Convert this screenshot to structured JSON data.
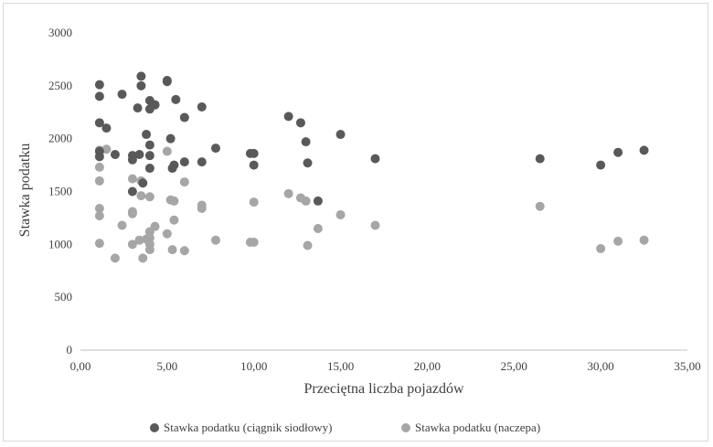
{
  "chart_data": {
    "type": "scatter",
    "title": "",
    "xlabel": "Przeciętna liczba pojazdów",
    "ylabel": "Stawka podatku",
    "xlim": [
      0,
      35
    ],
    "ylim": [
      0,
      3000
    ],
    "x_ticks": [
      "0,00",
      "5,00",
      "10,00",
      "15,00",
      "20,00",
      "25,00",
      "30,00",
      "35,00"
    ],
    "y_ticks": [
      "0",
      "500",
      "1000",
      "1500",
      "2000",
      "2500",
      "3000"
    ],
    "grid": false,
    "legend_position": "bottom",
    "series": [
      {
        "name": "Stawka podatku (ciągnik siodłowy)",
        "color": "#595959",
        "points": [
          [
            1.1,
            2510
          ],
          [
            1.1,
            2400
          ],
          [
            1.1,
            2150
          ],
          [
            1.1,
            1880
          ],
          [
            1.1,
            1830
          ],
          [
            1.5,
            2100
          ],
          [
            2.0,
            1850
          ],
          [
            2.4,
            2420
          ],
          [
            3.0,
            1840
          ],
          [
            3.0,
            1800
          ],
          [
            3.0,
            1500
          ],
          [
            3.3,
            2290
          ],
          [
            3.4,
            1850
          ],
          [
            3.5,
            2590
          ],
          [
            3.5,
            2500
          ],
          [
            3.6,
            1580
          ],
          [
            3.8,
            2040
          ],
          [
            4.0,
            2360
          ],
          [
            4.0,
            2280
          ],
          [
            4.0,
            1940
          ],
          [
            4.0,
            1840
          ],
          [
            4.0,
            1720
          ],
          [
            4.3,
            2320
          ],
          [
            5.0,
            2550
          ],
          [
            5.0,
            2540
          ],
          [
            5.2,
            2000
          ],
          [
            5.3,
            1720
          ],
          [
            5.4,
            1750
          ],
          [
            5.5,
            2370
          ],
          [
            6.0,
            2200
          ],
          [
            6.0,
            1780
          ],
          [
            7.0,
            2300
          ],
          [
            7.0,
            1780
          ],
          [
            7.8,
            1910
          ],
          [
            9.8,
            1860
          ],
          [
            10.0,
            1860
          ],
          [
            10.0,
            1750
          ],
          [
            12.0,
            2210
          ],
          [
            12.7,
            2150
          ],
          [
            13.0,
            1970
          ],
          [
            13.1,
            1770
          ],
          [
            13.7,
            1410
          ],
          [
            15.0,
            2040
          ],
          [
            17.0,
            1810
          ],
          [
            26.5,
            1810
          ],
          [
            30.0,
            1750
          ],
          [
            31.0,
            1870
          ],
          [
            32.5,
            1890
          ]
        ]
      },
      {
        "name": "Stawka podatku (naczepa)",
        "color": "#a6a6a6",
        "points": [
          [
            1.1,
            1890
          ],
          [
            1.5,
            1900
          ],
          [
            1.1,
            1730
          ],
          [
            1.1,
            1600
          ],
          [
            1.1,
            1340
          ],
          [
            1.1,
            1270
          ],
          [
            1.1,
            1010
          ],
          [
            2.0,
            870
          ],
          [
            2.4,
            1180
          ],
          [
            3.0,
            1620
          ],
          [
            3.0,
            1310
          ],
          [
            3.0,
            1290
          ],
          [
            3.0,
            1000
          ],
          [
            3.4,
            1040
          ],
          [
            3.5,
            1600
          ],
          [
            3.5,
            1460
          ],
          [
            3.6,
            870
          ],
          [
            3.8,
            1050
          ],
          [
            4.0,
            1450
          ],
          [
            4.0,
            1120
          ],
          [
            4.0,
            1060
          ],
          [
            4.0,
            1000
          ],
          [
            4.0,
            950
          ],
          [
            4.3,
            1170
          ],
          [
            5.0,
            1880
          ],
          [
            5.0,
            1100
          ],
          [
            5.2,
            1420
          ],
          [
            5.4,
            1410
          ],
          [
            5.4,
            1230
          ],
          [
            5.3,
            950
          ],
          [
            6.0,
            1590
          ],
          [
            6.0,
            940
          ],
          [
            7.0,
            1370
          ],
          [
            7.0,
            1340
          ],
          [
            7.8,
            1040
          ],
          [
            9.8,
            1020
          ],
          [
            10.0,
            1400
          ],
          [
            10.0,
            1020
          ],
          [
            12.0,
            1480
          ],
          [
            12.7,
            1440
          ],
          [
            13.0,
            1410
          ],
          [
            13.1,
            990
          ],
          [
            13.7,
            1150
          ],
          [
            15.0,
            1280
          ],
          [
            17.0,
            1180
          ],
          [
            26.5,
            1360
          ],
          [
            30.0,
            960
          ],
          [
            31.0,
            1030
          ],
          [
            32.5,
            1040
          ]
        ]
      }
    ]
  }
}
